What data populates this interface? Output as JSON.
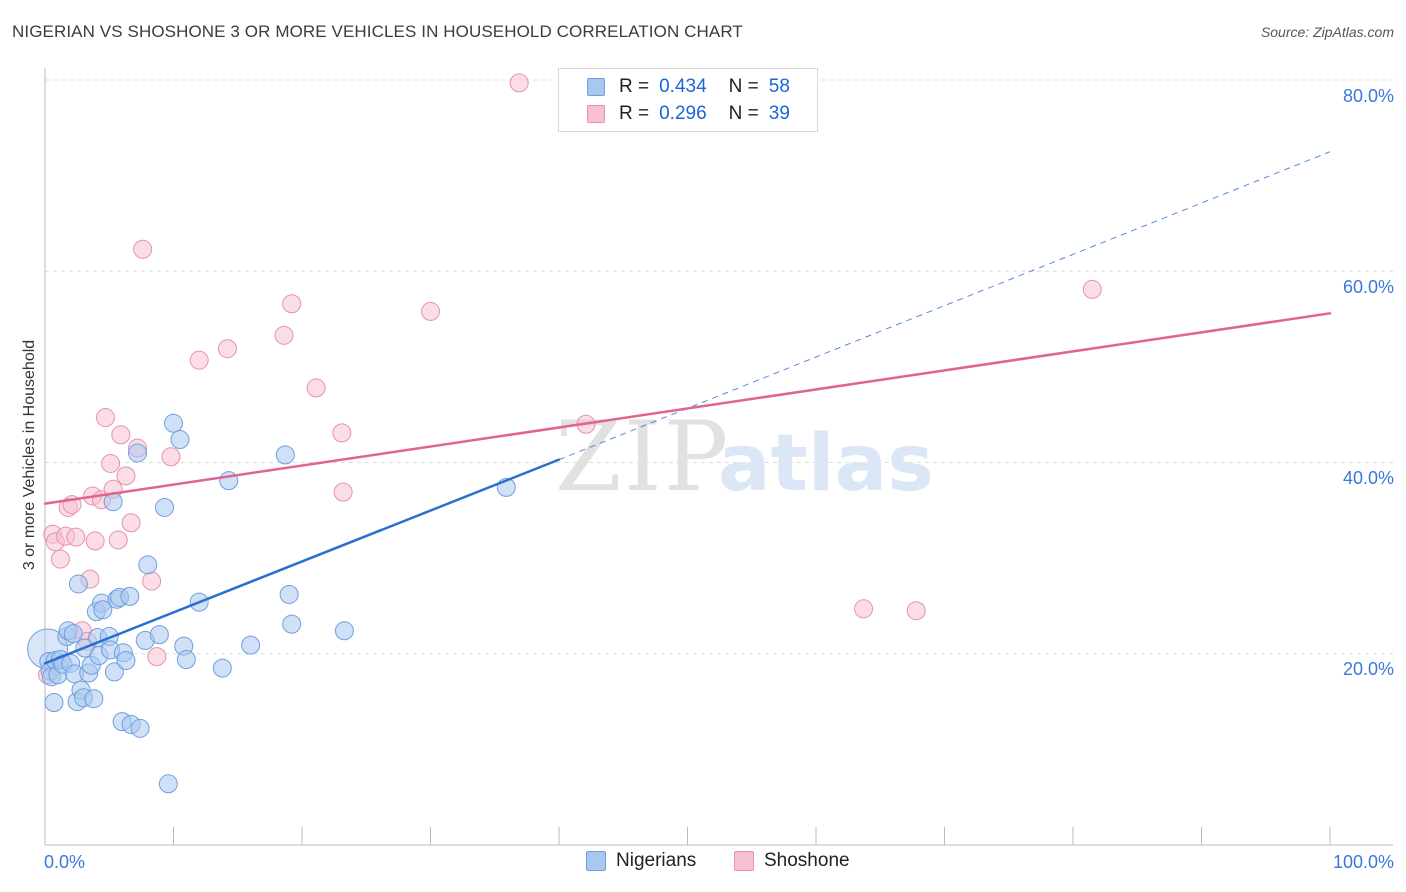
{
  "title": "NIGERIAN VS SHOSHONE 3 OR MORE VEHICLES IN HOUSEHOLD CORRELATION CHART",
  "source": "Source: ZipAtlas.com",
  "watermark": {
    "zip": "ZIP",
    "atlas": "atlas"
  },
  "legend": {
    "rows": [
      {
        "r_label": "R =",
        "r_value": "0.434",
        "n_label": "N =",
        "n_value": "58",
        "color": "#a9c8f0",
        "border": "#6f9fdd"
      },
      {
        "r_label": "R =",
        "r_value": "0.296",
        "n_label": "N =",
        "n_value": "39",
        "color": "#f7c1d1",
        "border": "#e792ad"
      }
    ]
  },
  "bottom_legend": [
    {
      "label": "Nigerians",
      "color": "#a9c8f0",
      "border": "#6f9fdd"
    },
    {
      "label": "Shoshone",
      "color": "#f7c1d1",
      "border": "#e792ad"
    }
  ],
  "chart_data": {
    "type": "scatter",
    "title": "NIGERIAN VS SHOSHONE 3 OR MORE VEHICLES IN HOUSEHOLD CORRELATION CHART",
    "xlabel": "",
    "ylabel": "3 or more Vehicles in Household",
    "xlim": [
      0,
      100
    ],
    "ylim": [
      0,
      80
    ],
    "x_tick_labels": [
      "0.0%",
      "100.0%"
    ],
    "y_ticks": [
      20,
      40,
      60,
      80
    ],
    "y_tick_labels": [
      "20.0%",
      "40.0%",
      "60.0%",
      "80.0%"
    ],
    "grid": true,
    "legend_position": "top-center",
    "series": [
      {
        "name": "Nigerians",
        "color": "#a9c8f0",
        "stroke": "#6f9fdd",
        "line_color": "#2a6fd0",
        "trend": {
          "x0": 0,
          "y0": 19.0,
          "x1": 40,
          "y1": 40.3,
          "dashed_to_x": 100,
          "dashed_to_y": 72.5
        },
        "points": [
          {
            "x": 0.2,
            "y": 20.5,
            "big": true
          },
          {
            "x": 0.3,
            "y": 19.2
          },
          {
            "x": 0.4,
            "y": 18.2
          },
          {
            "x": 0.5,
            "y": 17.6
          },
          {
            "x": 0.7,
            "y": 14.9
          },
          {
            "x": 0.8,
            "y": 19.3
          },
          {
            "x": 1.0,
            "y": 17.8
          },
          {
            "x": 1.2,
            "y": 19.4
          },
          {
            "x": 1.4,
            "y": 18.9
          },
          {
            "x": 1.7,
            "y": 21.8
          },
          {
            "x": 1.8,
            "y": 22.4
          },
          {
            "x": 2.0,
            "y": 19.0
          },
          {
            "x": 2.2,
            "y": 22.1
          },
          {
            "x": 2.3,
            "y": 17.9
          },
          {
            "x": 2.5,
            "y": 15.0
          },
          {
            "x": 2.6,
            "y": 27.3
          },
          {
            "x": 2.8,
            "y": 16.2
          },
          {
            "x": 3.0,
            "y": 15.4
          },
          {
            "x": 3.1,
            "y": 20.6
          },
          {
            "x": 3.4,
            "y": 18.0
          },
          {
            "x": 3.6,
            "y": 18.8
          },
          {
            "x": 3.8,
            "y": 15.3
          },
          {
            "x": 4.0,
            "y": 24.4
          },
          {
            "x": 4.1,
            "y": 21.7
          },
          {
            "x": 4.2,
            "y": 19.8
          },
          {
            "x": 4.4,
            "y": 25.3
          },
          {
            "x": 4.5,
            "y": 24.6
          },
          {
            "x": 5.0,
            "y": 21.8
          },
          {
            "x": 5.1,
            "y": 20.4
          },
          {
            "x": 5.3,
            "y": 35.9
          },
          {
            "x": 5.4,
            "y": 18.1
          },
          {
            "x": 5.6,
            "y": 25.7
          },
          {
            "x": 5.8,
            "y": 25.9
          },
          {
            "x": 6.0,
            "y": 12.9
          },
          {
            "x": 6.1,
            "y": 20.1
          },
          {
            "x": 6.3,
            "y": 19.3
          },
          {
            "x": 6.6,
            "y": 26.0
          },
          {
            "x": 6.7,
            "y": 12.6
          },
          {
            "x": 7.2,
            "y": 41.0
          },
          {
            "x": 7.4,
            "y": 12.2
          },
          {
            "x": 7.8,
            "y": 21.4
          },
          {
            "x": 8.0,
            "y": 29.3
          },
          {
            "x": 8.9,
            "y": 22.0
          },
          {
            "x": 9.3,
            "y": 35.3
          },
          {
            "x": 9.6,
            "y": 6.4
          },
          {
            "x": 10.0,
            "y": 44.1
          },
          {
            "x": 10.5,
            "y": 42.4
          },
          {
            "x": 10.8,
            "y": 20.8
          },
          {
            "x": 11.0,
            "y": 19.4
          },
          {
            "x": 12.0,
            "y": 25.4
          },
          {
            "x": 13.8,
            "y": 18.5
          },
          {
            "x": 14.3,
            "y": 38.1
          },
          {
            "x": 16.0,
            "y": 20.9
          },
          {
            "x": 18.7,
            "y": 40.8
          },
          {
            "x": 19.0,
            "y": 26.2
          },
          {
            "x": 19.2,
            "y": 23.1
          },
          {
            "x": 23.3,
            "y": 22.4
          },
          {
            "x": 35.9,
            "y": 37.4
          }
        ]
      },
      {
        "name": "Shoshone",
        "color": "#f7c1d1",
        "stroke": "#e792ad",
        "line_color": "#e0648f",
        "trend": {
          "x0": 0,
          "y0": 35.7,
          "x1": 100,
          "y1": 55.6
        },
        "points": [
          {
            "x": 0.2,
            "y": 17.8
          },
          {
            "x": 0.6,
            "y": 32.5
          },
          {
            "x": 0.8,
            "y": 31.7
          },
          {
            "x": 1.2,
            "y": 29.9
          },
          {
            "x": 1.6,
            "y": 32.3
          },
          {
            "x": 1.8,
            "y": 35.3
          },
          {
            "x": 2.1,
            "y": 35.6
          },
          {
            "x": 2.4,
            "y": 32.2
          },
          {
            "x": 2.9,
            "y": 22.4
          },
          {
            "x": 3.3,
            "y": 21.3
          },
          {
            "x": 3.5,
            "y": 27.8
          },
          {
            "x": 3.7,
            "y": 36.5
          },
          {
            "x": 3.9,
            "y": 31.8
          },
          {
            "x": 4.4,
            "y": 36.1
          },
          {
            "x": 4.7,
            "y": 44.7
          },
          {
            "x": 5.1,
            "y": 39.9
          },
          {
            "x": 5.3,
            "y": 37.2
          },
          {
            "x": 5.7,
            "y": 31.9
          },
          {
            "x": 5.9,
            "y": 42.9
          },
          {
            "x": 6.3,
            "y": 38.6
          },
          {
            "x": 6.7,
            "y": 33.7
          },
          {
            "x": 7.2,
            "y": 41.5
          },
          {
            "x": 7.6,
            "y": 62.3
          },
          {
            "x": 8.3,
            "y": 27.6
          },
          {
            "x": 8.7,
            "y": 19.7
          },
          {
            "x": 9.8,
            "y": 40.6
          },
          {
            "x": 12.0,
            "y": 50.7
          },
          {
            "x": 14.2,
            "y": 51.9
          },
          {
            "x": 18.6,
            "y": 53.3
          },
          {
            "x": 19.2,
            "y": 56.6
          },
          {
            "x": 21.1,
            "y": 47.8
          },
          {
            "x": 23.1,
            "y": 43.1
          },
          {
            "x": 23.2,
            "y": 36.9
          },
          {
            "x": 30.0,
            "y": 55.8
          },
          {
            "x": 36.9,
            "y": 79.7
          },
          {
            "x": 42.1,
            "y": 44.0
          },
          {
            "x": 63.7,
            "y": 24.7
          },
          {
            "x": 67.8,
            "y": 24.5
          },
          {
            "x": 81.5,
            "y": 58.1
          }
        ]
      }
    ]
  }
}
